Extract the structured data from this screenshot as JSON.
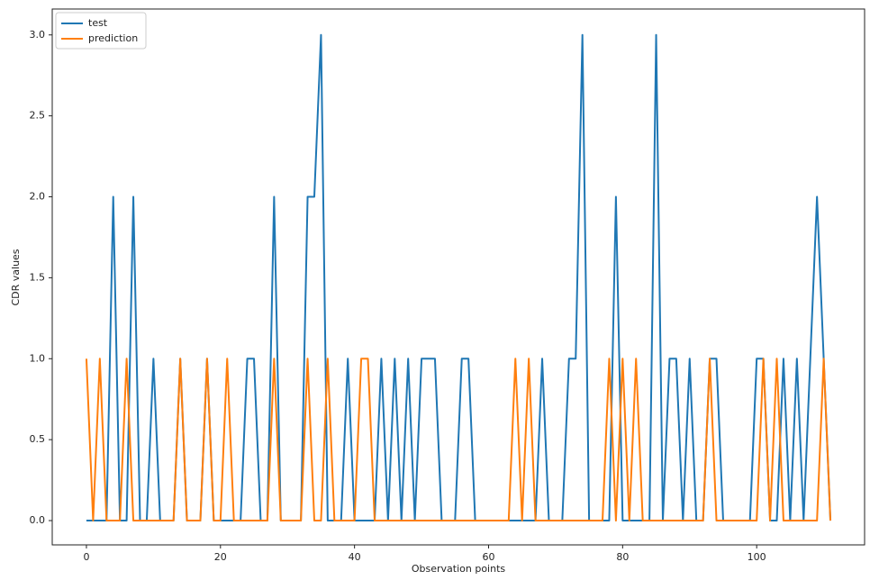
{
  "chart_data": {
    "type": "line",
    "x_label": "Observation points",
    "y_label": "CDR values",
    "x": [
      0,
      1,
      2,
      3,
      4,
      5,
      6,
      7,
      8,
      9,
      10,
      11,
      12,
      13,
      14,
      15,
      16,
      17,
      18,
      19,
      20,
      21,
      22,
      23,
      24,
      25,
      26,
      27,
      28,
      29,
      30,
      31,
      32,
      33,
      34,
      35,
      36,
      37,
      38,
      39,
      40,
      41,
      42,
      43,
      44,
      45,
      46,
      47,
      48,
      49,
      50,
      51,
      52,
      53,
      54,
      55,
      56,
      57,
      58,
      59,
      60,
      61,
      62,
      63,
      64,
      65,
      66,
      67,
      68,
      69,
      70,
      71,
      72,
      73,
      74,
      75,
      76,
      77,
      78,
      79,
      80,
      81,
      82,
      83,
      84,
      85,
      86,
      87,
      88,
      89,
      90,
      91,
      92,
      93,
      94,
      95,
      96,
      97,
      98,
      99,
      100,
      101,
      102,
      103,
      104,
      105,
      106,
      107,
      108,
      109,
      110,
      111
    ],
    "series": [
      {
        "name": "test",
        "color": "#1f77b4",
        "values": [
          0,
          0,
          0,
          0,
          2,
          0,
          0,
          2,
          0,
          0,
          1,
          0,
          0,
          0,
          1,
          0,
          0,
          0,
          1,
          0,
          0,
          0,
          0,
          0,
          1,
          1,
          0,
          0,
          2,
          0,
          0,
          0,
          0,
          2,
          2,
          3,
          0,
          0,
          0,
          1,
          0,
          0,
          0,
          0,
          1,
          0,
          1,
          0,
          1,
          0,
          1,
          1,
          1,
          0,
          0,
          0,
          1,
          1,
          0,
          0,
          0,
          0,
          0,
          0,
          0,
          0,
          0,
          0,
          1,
          0,
          0,
          0,
          1,
          1,
          3,
          0,
          0,
          0,
          0,
          2,
          0,
          0,
          0,
          0,
          0,
          3,
          0,
          1,
          1,
          0,
          1,
          0,
          0,
          1,
          1,
          0,
          0,
          0,
          0,
          0,
          1,
          1,
          0,
          0,
          1,
          0,
          1,
          0,
          1,
          2,
          1,
          0
        ]
      },
      {
        "name": "prediction",
        "color": "#ff7f0e",
        "values": [
          1,
          0,
          1,
          0,
          0,
          0,
          1,
          0,
          0,
          0,
          0,
          0,
          0,
          0,
          1,
          0,
          0,
          0,
          1,
          0,
          0,
          1,
          0,
          0,
          0,
          0,
          0,
          0,
          1,
          0,
          0,
          0,
          0,
          1,
          0,
          0,
          1,
          0,
          0,
          0,
          0,
          1,
          1,
          0,
          0,
          0,
          0,
          0,
          0,
          0,
          0,
          0,
          0,
          0,
          0,
          0,
          0,
          0,
          0,
          0,
          0,
          0,
          0,
          0,
          1,
          0,
          1,
          0,
          0,
          0,
          0,
          0,
          0,
          0,
          0,
          0,
          0,
          0,
          1,
          0,
          1,
          0,
          1,
          0,
          0,
          0,
          0,
          0,
          0,
          0,
          0,
          0,
          0,
          1,
          0,
          0,
          0,
          0,
          0,
          0,
          0,
          1,
          0,
          1,
          0,
          0,
          0,
          0,
          0,
          0,
          1,
          0
        ]
      }
    ],
    "xlim": [
      -5.1,
      116.1
    ],
    "ylim": [
      -0.15,
      3.16
    ],
    "xticks": [
      0,
      20,
      40,
      60,
      80,
      100
    ],
    "yticks": [
      {
        "value": 0,
        "label": "0.0"
      },
      {
        "value": 0.5,
        "label": "0.5"
      },
      {
        "value": 1,
        "label": "1.0"
      },
      {
        "value": 1.5,
        "label": "1.5"
      },
      {
        "value": 2,
        "label": "2.0"
      },
      {
        "value": 2.5,
        "label": "2.5"
      },
      {
        "value": 3,
        "label": "3.0"
      }
    ],
    "legend": "upper left"
  }
}
